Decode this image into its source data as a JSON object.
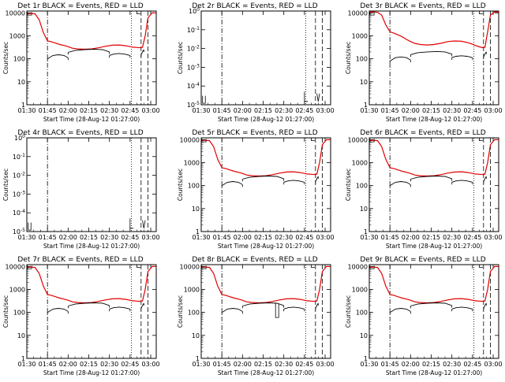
{
  "chart_data": {
    "type": "line",
    "layout": "3x3 grid",
    "x_label": "Start Time (28-Aug-12 01:27:00)",
    "x_ticks": [
      "01:30",
      "01:45",
      "02:00",
      "02:15",
      "02:30",
      "02:45",
      "03:00"
    ],
    "x_tick_minutes": [
      3,
      18,
      33,
      48,
      63,
      78,
      93
    ],
    "x_range_minutes": [
      3,
      97
    ],
    "y_label": "Counts/sec",
    "log_ticks_counts": [
      "1",
      "10",
      "100",
      "1000",
      "10000"
    ],
    "log_ticks_empty": [
      "10^-5",
      "10^-4",
      "10^-3",
      "10^-2",
      "10^-1",
      "10^0"
    ],
    "legend_text": "BLACK = Events, RED = LLD",
    "series": [
      {
        "name": "Events",
        "color": "#000000"
      },
      {
        "name": "LLD",
        "color": "#e00000"
      }
    ],
    "vlines": [
      {
        "style": "dashdot",
        "minute": 18
      },
      {
        "style": "dotted",
        "minute": 79
      },
      {
        "style": "dashed",
        "minute": 86
      },
      {
        "style": "dashed",
        "minute": 91
      }
    ],
    "panels": [
      {
        "title": "Det 1r BLACK = Events, RED = LLD",
        "yscale": "counts",
        "ylim": [
          1,
          12000
        ],
        "kind": "A"
      },
      {
        "title": "Det 2r BLACK = Events, RED = LLD",
        "yscale": "empty",
        "ylim": [
          1e-05,
          1
        ],
        "kind": "empty"
      },
      {
        "title": "Det 3r BLACK = Events, RED = LLD",
        "yscale": "counts",
        "ylim": [
          1,
          12000
        ],
        "kind": "B"
      },
      {
        "title": "Det 4r BLACK = Events, RED = LLD",
        "yscale": "empty",
        "ylim": [
          1e-05,
          1
        ],
        "kind": "empty"
      },
      {
        "title": "Det 5r BLACK = Events, RED = LLD",
        "yscale": "counts",
        "ylim": [
          1,
          12000
        ],
        "kind": "A"
      },
      {
        "title": "Det 6r BLACK = Events, RED = LLD",
        "yscale": "counts",
        "ylim": [
          1,
          12000
        ],
        "kind": "A"
      },
      {
        "title": "Det 7r BLACK = Events, RED = LLD",
        "yscale": "counts",
        "ylim": [
          1,
          12000
        ],
        "kind": "A"
      },
      {
        "title": "Det 8r BLACK = Events, RED = LLD",
        "yscale": "counts",
        "ylim": [
          1,
          12000
        ],
        "kind": "C"
      },
      {
        "title": "Det 9r BLACK = Events, RED = LLD",
        "yscale": "counts",
        "ylim": [
          1,
          12000
        ],
        "kind": "A"
      }
    ],
    "red_curve": {
      "x": [
        3,
        6,
        9,
        12,
        15,
        18,
        21,
        24,
        27,
        30,
        33,
        36,
        40,
        45,
        50,
        55,
        60,
        65,
        70,
        75,
        78,
        80,
        83,
        86,
        87,
        89,
        91,
        94,
        97
      ],
      "y": [
        9000,
        9500,
        9000,
        5000,
        1400,
        600,
        550,
        480,
        420,
        380,
        340,
        290,
        270,
        260,
        270,
        300,
        350,
        390,
        400,
        370,
        340,
        320,
        310,
        300,
        320,
        1000,
        6000,
        10000,
        10000
      ]
    },
    "red_curve_b": {
      "x": [
        3,
        6,
        9,
        12,
        15,
        18,
        21,
        24,
        27,
        30,
        33,
        36,
        40,
        45,
        50,
        55,
        60,
        65,
        70,
        75,
        78,
        80,
        83,
        86,
        87,
        89,
        91,
        94,
        97
      ],
      "y": [
        11000,
        11000,
        10500,
        8000,
        3000,
        1500,
        1300,
        1100,
        900,
        700,
        560,
        470,
        420,
        400,
        420,
        470,
        560,
        600,
        580,
        500,
        430,
        380,
        330,
        300,
        320,
        1500,
        8000,
        11000,
        11000
      ]
    },
    "black_segments": [
      {
        "x": [
          18,
          22,
          26,
          30,
          33
        ],
        "y": [
          100,
          140,
          150,
          140,
          110
        ]
      },
      {
        "x": [
          33,
          38,
          45,
          52,
          58,
          63
        ],
        "y": [
          190,
          230,
          250,
          260,
          250,
          200
        ]
      },
      {
        "x": [
          63,
          66,
          70,
          74,
          78
        ],
        "y": [
          140,
          160,
          170,
          160,
          140
        ]
      },
      {
        "x": [
          86,
          87,
          88
        ],
        "y": [
          150,
          200,
          250
        ]
      }
    ]
  }
}
